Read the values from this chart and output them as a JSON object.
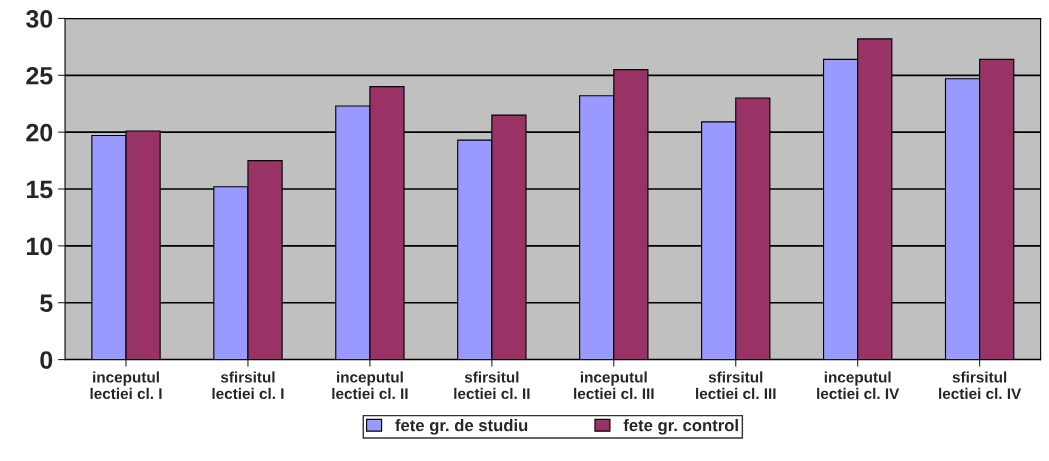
{
  "chart_data": {
    "type": "bar",
    "categories": [
      "inceputul\nlectiei cl. I",
      "sfirsitul\nlectiei cl. I",
      "inceputul\nlectiei cl. II",
      "sfirsitul\nlectiei cl. II",
      "inceputul\nlectiei cl. III",
      "sfirsitul\nlectiei cl. III",
      "inceputul\nlectiei cl. IV",
      "sfirsitul\nlectiei cl. IV"
    ],
    "series": [
      {
        "name": "fete gr. de studiu",
        "color": "#9999ff",
        "values": [
          19.7,
          15.2,
          22.3,
          19.3,
          23.2,
          20.9,
          26.4,
          24.7
        ]
      },
      {
        "name": "fete gr. control",
        "color": "#993366",
        "values": [
          20.1,
          17.5,
          24.0,
          21.5,
          25.5,
          23.0,
          28.2,
          26.4
        ]
      }
    ],
    "ylim": [
      0,
      30
    ],
    "yticks": [
      0,
      5,
      10,
      15,
      20,
      25,
      30
    ],
    "grid": "y",
    "legend": "bottom"
  }
}
